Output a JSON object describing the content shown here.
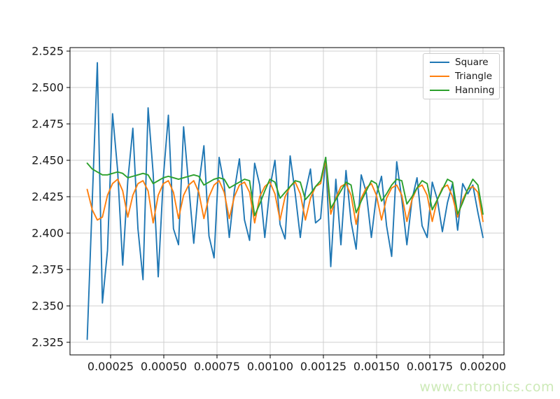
{
  "watermark": {
    "text": "www.cntronics.com",
    "color": "#cdeab8"
  },
  "colors": {
    "background": "#ffffff",
    "grid": "#cfcfcf",
    "spine": "#000000",
    "tick_text": "#1a1a1a"
  },
  "chart_data": {
    "type": "line",
    "title": "",
    "xlabel": "",
    "ylabel": "",
    "grid": true,
    "legend": {
      "position": "upper right"
    },
    "xlim": [
      5.92e-05,
      0.0020987
    ],
    "ylim": [
      2.31635,
      2.5274
    ],
    "x_ticks": {
      "values": [
        0.00025,
        0.0005,
        0.00075,
        0.001,
        0.00125,
        0.0015,
        0.00175,
        0.002
      ],
      "labels": [
        "0.00025",
        "0.00050",
        "0.00075",
        "0.00100",
        "0.00125",
        "0.00150",
        "0.00175",
        "0.00200"
      ]
    },
    "y_ticks": {
      "values": [
        2.325,
        2.35,
        2.375,
        2.4,
        2.425,
        2.45,
        2.475,
        2.5,
        2.525
      ],
      "labels": [
        "2.325",
        "2.350",
        "2.375",
        "2.400",
        "2.425",
        "2.450",
        "2.475",
        "2.500",
        "2.525"
      ]
    },
    "x": [
      0.00014,
      0.0001638,
      0.0001877,
      0.0002115,
      0.0002354,
      0.0002592,
      0.0002831,
      0.0003069,
      0.0003308,
      0.0003546,
      0.0003785,
      0.0004023,
      0.0004262,
      0.00045,
      0.0004738,
      0.0004977,
      0.0005215,
      0.0005454,
      0.0005692,
      0.0005931,
      0.0006169,
      0.0006408,
      0.0006646,
      0.0006885,
      0.0007123,
      0.0007362,
      0.00076,
      0.0007838,
      0.0008077,
      0.0008315,
      0.0008554,
      0.0008792,
      0.0009031,
      0.0009269,
      0.0009508,
      0.0009746,
      0.0009985,
      0.0010223,
      0.0010462,
      0.00107,
      0.0010938,
      0.0011177,
      0.0011415,
      0.0011654,
      0.0011892,
      0.0012131,
      0.0012369,
      0.0012608,
      0.0012846,
      0.0013085,
      0.0013323,
      0.0013562,
      0.00138,
      0.0014039,
      0.0014277,
      0.0014515,
      0.0014754,
      0.0014992,
      0.0015231,
      0.0015469,
      0.0015708,
      0.0015946,
      0.0016185,
      0.0016423,
      0.0016662,
      0.00169,
      0.0017138,
      0.0017377,
      0.0017615,
      0.0017854,
      0.0018092,
      0.0018331,
      0.0018569,
      0.0018808,
      0.0019046,
      0.0019285,
      0.0019523,
      0.0019762,
      0.002
    ],
    "series": [
      {
        "name": "Square",
        "color": "#1f77b4",
        "values": [
          2.327,
          2.422,
          2.517,
          2.352,
          2.388,
          2.482,
          2.443,
          2.378,
          2.436,
          2.472,
          2.403,
          2.368,
          2.486,
          2.441,
          2.37,
          2.438,
          2.481,
          2.403,
          2.392,
          2.473,
          2.433,
          2.393,
          2.433,
          2.46,
          2.398,
          2.383,
          2.452,
          2.433,
          2.397,
          2.429,
          2.451,
          2.409,
          2.395,
          2.448,
          2.433,
          2.397,
          2.431,
          2.45,
          2.406,
          2.396,
          2.453,
          2.427,
          2.397,
          2.428,
          2.444,
          2.407,
          2.41,
          2.452,
          2.377,
          2.437,
          2.392,
          2.443,
          2.408,
          2.389,
          2.44,
          2.428,
          2.397,
          2.426,
          2.439,
          2.405,
          2.384,
          2.449,
          2.423,
          2.392,
          2.423,
          2.438,
          2.405,
          2.397,
          2.435,
          2.423,
          2.401,
          2.421,
          2.434,
          2.402,
          2.434,
          2.427,
          2.433,
          2.414,
          2.397
        ]
      },
      {
        "name": "Triangle",
        "color": "#ff7f0e",
        "values": [
          2.43,
          2.416,
          2.409,
          2.411,
          2.426,
          2.434,
          2.437,
          2.429,
          2.411,
          2.426,
          2.434,
          2.436,
          2.429,
          2.407,
          2.426,
          2.434,
          2.436,
          2.428,
          2.41,
          2.426,
          2.433,
          2.436,
          2.428,
          2.41,
          2.425,
          2.433,
          2.436,
          2.428,
          2.41,
          2.425,
          2.433,
          2.435,
          2.428,
          2.407,
          2.425,
          2.432,
          2.435,
          2.427,
          2.409,
          2.425,
          2.432,
          2.435,
          2.427,
          2.409,
          2.424,
          2.432,
          2.434,
          2.45,
          2.413,
          2.424,
          2.432,
          2.434,
          2.426,
          2.406,
          2.424,
          2.431,
          2.434,
          2.426,
          2.409,
          2.424,
          2.431,
          2.433,
          2.426,
          2.408,
          2.423,
          2.431,
          2.433,
          2.426,
          2.408,
          2.423,
          2.431,
          2.433,
          2.425,
          2.411,
          2.423,
          2.43,
          2.432,
          2.428,
          2.408
        ]
      },
      {
        "name": "Hanning",
        "color": "#2ca02c",
        "values": [
          2.448,
          2.444,
          2.442,
          2.44,
          2.44,
          2.441,
          2.442,
          2.441,
          2.438,
          2.439,
          2.44,
          2.441,
          2.44,
          2.434,
          2.436,
          2.438,
          2.439,
          2.438,
          2.437,
          2.438,
          2.439,
          2.44,
          2.439,
          2.433,
          2.435,
          2.437,
          2.438,
          2.437,
          2.431,
          2.433,
          2.435,
          2.437,
          2.436,
          2.412,
          2.42,
          2.429,
          2.437,
          2.435,
          2.424,
          2.428,
          2.432,
          2.436,
          2.435,
          2.423,
          2.427,
          2.432,
          2.436,
          2.452,
          2.417,
          2.423,
          2.429,
          2.435,
          2.433,
          2.414,
          2.422,
          2.429,
          2.436,
          2.434,
          2.422,
          2.427,
          2.433,
          2.437,
          2.436,
          2.42,
          2.425,
          2.431,
          2.436,
          2.434,
          2.416,
          2.423,
          2.43,
          2.437,
          2.435,
          2.413,
          2.421,
          2.43,
          2.437,
          2.433,
          2.413
        ]
      }
    ]
  }
}
